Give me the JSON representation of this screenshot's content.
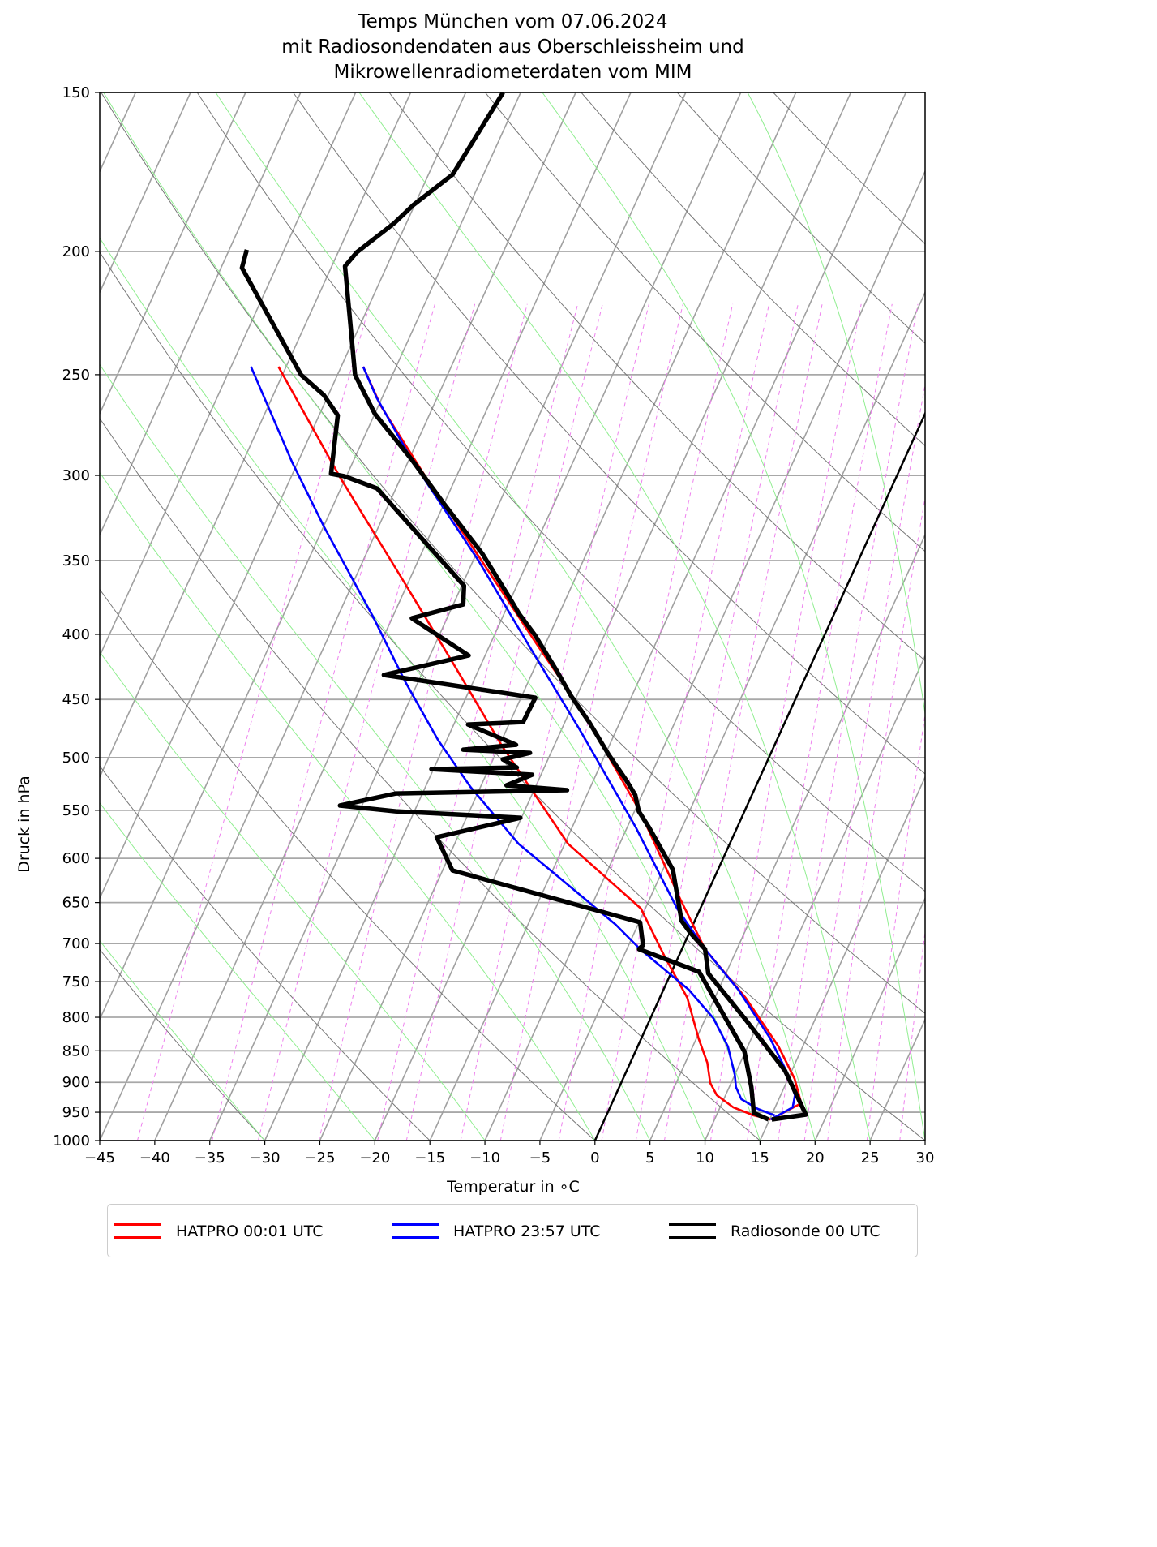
{
  "chart_data": {
    "type": "line",
    "subtype": "skew-T log-p diagram",
    "title": [
      "Temps München vom 07.06.2024",
      "mit Radiosondendaten aus Oberschleissheim und",
      "Mikrowellenradiometerdaten vom MIM"
    ],
    "xlabel": "Temperatur in ∘C",
    "ylabel": "Druck in hPa",
    "xlim": [
      -45,
      30
    ],
    "ylim": [
      1000,
      150
    ],
    "yscale": "log",
    "xticks": [
      -45,
      -40,
      -35,
      -30,
      -25,
      -20,
      -15,
      -10,
      -5,
      0,
      5,
      10,
      15,
      20,
      25,
      30
    ],
    "yticks": [
      150,
      200,
      250,
      300,
      350,
      400,
      450,
      500,
      550,
      600,
      650,
      700,
      750,
      800,
      850,
      900,
      950,
      1000
    ],
    "grid": true,
    "legend_position": "bottom",
    "highlight_isotherm": 0,
    "dry_adiabats_theta0_C": [
      -30,
      -15,
      0,
      15,
      30,
      45,
      60,
      75,
      90,
      105,
      120,
      135,
      150
    ],
    "moist_adiabats_T0_C": [
      -30,
      -20,
      -10,
      0,
      5,
      10,
      15,
      20,
      25,
      30,
      35
    ],
    "mixing_ratios_gkg": [
      0.1,
      0.2,
      0.3,
      0.5,
      0.8,
      1,
      1.5,
      2,
      3,
      4,
      5,
      6,
      8,
      10,
      12,
      14,
      16,
      20,
      24,
      28,
      32
    ],
    "series": [
      {
        "name": "HATPRO 00:01 UTC",
        "color": "#ff0000",
        "temperature": [
          [
            246.4,
            -53.0
          ],
          [
            264.4,
            -49.8
          ],
          [
            297.4,
            -43.4
          ],
          [
            354.7,
            -33.5
          ],
          [
            404.8,
            -26.1
          ],
          [
            461.9,
            -18.6
          ],
          [
            551.0,
            -9.5
          ],
          [
            647.5,
            -2.1
          ],
          [
            707.1,
            2.1
          ],
          [
            772.3,
            7.8
          ],
          [
            843.4,
            12.8
          ],
          [
            894.4,
            15.6
          ],
          [
            934.7,
            17.2
          ],
          [
            962.5,
            15.1
          ]
        ],
        "dewpoint": [
          [
            246.4,
            -60.7
          ],
          [
            301.8,
            -50.4
          ],
          [
            365.2,
            -40.2
          ],
          [
            423.0,
            -32.4
          ],
          [
            489.9,
            -24.7
          ],
          [
            584.3,
            -14.7
          ],
          [
            657.1,
            -5.4
          ],
          [
            717.6,
            -1.2
          ],
          [
            772.3,
            2.5
          ],
          [
            831.1,
            5.2
          ],
          [
            868.5,
            7.0
          ],
          [
            901.0,
            8.1
          ],
          [
            921.1,
            9.2
          ],
          [
            941.6,
            11.2
          ],
          [
            955.5,
            13.4
          ],
          [
            962.5,
            15.1
          ]
        ]
      },
      {
        "name": "HATPRO 23:57 UTC",
        "color": "#0000ff",
        "temperature": [
          [
            246.4,
            -53.0
          ],
          [
            260.6,
            -50.5
          ],
          [
            293.0,
            -44.5
          ],
          [
            349.5,
            -34.6
          ],
          [
            410.8,
            -26.1
          ],
          [
            475.7,
            -18.3
          ],
          [
            567.4,
            -9.2
          ],
          [
            657.1,
            -2.1
          ],
          [
            707.1,
            2.1
          ],
          [
            761.0,
            6.8
          ],
          [
            831.1,
            11.7
          ],
          [
            881.4,
            14.5
          ],
          [
            921.1,
            16.3
          ],
          [
            941.6,
            16.6
          ],
          [
            962.5,
            15.1
          ]
        ],
        "dewpoint": [
          [
            246.4,
            -63.2
          ],
          [
            293.0,
            -55.5
          ],
          [
            329.6,
            -49.9
          ],
          [
            387.3,
            -41.8
          ],
          [
            435.6,
            -36.2
          ],
          [
            484.2,
            -30.8
          ],
          [
            527.3,
            -25.9
          ],
          [
            584.3,
            -19.2
          ],
          [
            628.8,
            -13.1
          ],
          [
            676.7,
            -7.0
          ],
          [
            707.1,
            -3.8
          ],
          [
            761.0,
            2.3
          ],
          [
            801.2,
            5.7
          ],
          [
            843.4,
            8.2
          ],
          [
            887.9,
            10.0
          ],
          [
            907.6,
            10.6
          ],
          [
            927.8,
            11.6
          ],
          [
            944.3,
            13.5
          ],
          [
            955.5,
            15.3
          ]
        ]
      },
      {
        "name": "Radiosonde 00 UTC",
        "color": "#000000",
        "temperature": [
          [
            150,
            -51.6
          ],
          [
            174.0,
            -52.8
          ],
          [
            183.8,
            -55.1
          ],
          [
            190.0,
            -56.1
          ],
          [
            200.3,
            -58.3
          ],
          [
            205.4,
            -58.8
          ],
          [
            228.3,
            -55.9
          ],
          [
            250.1,
            -53.4
          ],
          [
            268.3,
            -50.0
          ],
          [
            291.3,
            -44.8
          ],
          [
            316.3,
            -39.9
          ],
          [
            345.4,
            -34.5
          ],
          [
            373.4,
            -30.3
          ],
          [
            385.6,
            -28.6
          ],
          [
            400.6,
            -26.3
          ],
          [
            426.1,
            -23.0
          ],
          [
            447.3,
            -20.5
          ],
          [
            468.8,
            -17.8
          ],
          [
            497.1,
            -14.7
          ],
          [
            521.1,
            -12.0
          ],
          [
            535.0,
            -10.6
          ],
          [
            551.0,
            -9.6
          ],
          [
            567.4,
            -8.0
          ],
          [
            612.4,
            -4.1
          ],
          [
            671.8,
            -1.2
          ],
          [
            686.7,
            0.1
          ],
          [
            707.1,
            2.1
          ],
          [
            739.0,
            3.4
          ],
          [
            804.7,
            8.8
          ],
          [
            881.4,
            14.4
          ],
          [
            954.1,
            18.1
          ],
          [
            962.5,
            15.2
          ]
        ],
        "dewpoint": [
          [
            199.4,
            -68.4
          ],
          [
            206.0,
            -68.1
          ],
          [
            250.1,
            -58.3
          ],
          [
            259.4,
            -55.4
          ],
          [
            269.1,
            -53.3
          ],
          [
            299.1,
            -51.5
          ],
          [
            300.4,
            -50.2
          ],
          [
            307.2,
            -46.7
          ],
          [
            366.3,
            -34.8
          ],
          [
            378.9,
            -34.1
          ],
          [
            388.5,
            -38.2
          ],
          [
            415.6,
            -31.5
          ],
          [
            430.5,
            -38.4
          ],
          [
            448.6,
            -23.7
          ],
          [
            468.8,
            -23.8
          ],
          [
            470.9,
            -28.7
          ],
          [
            488.5,
            -23.5
          ],
          [
            492.8,
            -28.1
          ],
          [
            495.7,
            -21.9
          ],
          [
            501.6,
            -24.1
          ],
          [
            509.0,
            -22.5
          ],
          [
            510.5,
            -30.2
          ],
          [
            515.7,
            -20.8
          ],
          [
            525.7,
            -22.7
          ],
          [
            530.3,
            -17.0
          ],
          [
            533.5,
            -32.4
          ],
          [
            545.3,
            -37.0
          ],
          [
            551.0,
            -31.7
          ],
          [
            557.5,
            -20.1
          ],
          [
            577.5,
            -26.9
          ],
          [
            613.3,
            -24.1
          ],
          [
            673.7,
            -4.9
          ],
          [
            702.0,
            -3.7
          ],
          [
            707.1,
            -3.9
          ],
          [
            736.8,
            2.5
          ],
          [
            850.9,
            9.9
          ],
          [
            907.6,
            12.0
          ],
          [
            951.3,
            13.3
          ],
          [
            962.5,
            14.9
          ]
        ]
      }
    ]
  }
}
